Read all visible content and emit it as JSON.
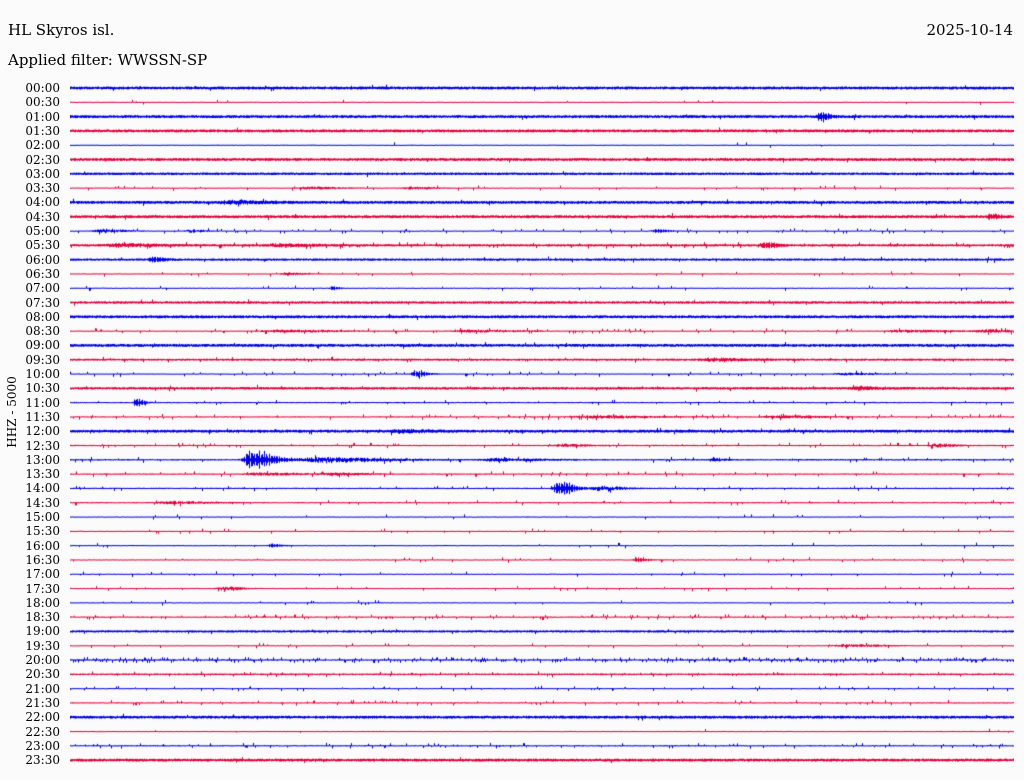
{
  "header": {
    "station": "HL Skyros isl.",
    "filter": "Applied filter: WWSSN-SP",
    "date": "2025-10-14"
  },
  "axis": {
    "channel_label": "HHZ - 5000"
  },
  "colors": {
    "trace_blue": "#0000E6",
    "trace_red": "#E4003C",
    "background": "#FBFBFB",
    "text": "#000000"
  },
  "chart_data": {
    "type": "line",
    "subtype": "helicorder-daily-24h",
    "title": "HL Skyros isl.",
    "date": "2025-10-14",
    "filter": "WWSSN-SP",
    "ylabel": "HHZ - 5000",
    "xlabel": "",
    "grid": "off",
    "legend": "off",
    "row_duration_minutes": 30,
    "rows_count": 48,
    "note": "48 alternating blue/red half-hour traces; amp = baseline noise half-thickness in px; events pos = fraction of the 30-min row; amp in px",
    "rows": [
      {
        "t": "00:00",
        "c": "blue",
        "amp": 1.5,
        "spiky": 0.02,
        "events": []
      },
      {
        "t": "00:30",
        "c": "red",
        "amp": 0.6,
        "spiky": 0.02,
        "events": []
      },
      {
        "t": "01:00",
        "c": "blue",
        "amp": 1.5,
        "spiky": 0.02,
        "events": [
          {
            "pos": 0.794,
            "amp": 4,
            "w": 6,
            "type": "quake"
          }
        ]
      },
      {
        "t": "01:30",
        "c": "red",
        "amp": 1.5,
        "spiky": 0.01,
        "events": []
      },
      {
        "t": "02:00",
        "c": "blue",
        "amp": 0.6,
        "spiky": 0.01,
        "events": []
      },
      {
        "t": "02:30",
        "c": "red",
        "amp": 1.5,
        "spiky": 0.01,
        "events": []
      },
      {
        "t": "03:00",
        "c": "blue",
        "amp": 1.3,
        "spiky": 0.01,
        "events": []
      },
      {
        "t": "03:30",
        "c": "red",
        "amp": 0.6,
        "spiky": 0.06,
        "events": [
          {
            "pos": 0.25,
            "amp": 1.2,
            "w": 20,
            "type": "noise"
          },
          {
            "pos": 0.36,
            "amp": 1.2,
            "w": 15,
            "type": "noise"
          }
        ]
      },
      {
        "t": "04:00",
        "c": "blue",
        "amp": 1.5,
        "spiky": 0.03,
        "events": [
          {
            "pos": 0.17,
            "amp": 1.3,
            "w": 25,
            "type": "noise"
          }
        ]
      },
      {
        "t": "04:30",
        "c": "red",
        "amp": 1.5,
        "spiky": 0.02,
        "events": [
          {
            "pos": 0.974,
            "amp": 2.5,
            "w": 6,
            "type": "quake"
          }
        ]
      },
      {
        "t": "05:00",
        "c": "blue",
        "amp": 0.5,
        "spiky": 0.1,
        "events": [
          {
            "pos": 0.032,
            "amp": 1.5,
            "w": 18,
            "type": "noise"
          },
          {
            "pos": 0.127,
            "amp": 1.5,
            "w": 10,
            "type": "noise"
          },
          {
            "pos": 0.62,
            "amp": 2,
            "w": 8,
            "type": "quake"
          }
        ]
      },
      {
        "t": "05:30",
        "c": "red",
        "amp": 1.2,
        "spiky": 0.08,
        "events": [
          {
            "pos": 0.05,
            "amp": 1.3,
            "w": 30,
            "type": "noise"
          },
          {
            "pos": 0.22,
            "amp": 1.3,
            "w": 25,
            "type": "noise"
          },
          {
            "pos": 0.736,
            "amp": 3,
            "w": 8,
            "type": "quake"
          }
        ]
      },
      {
        "t": "06:00",
        "c": "blue",
        "amp": 1.2,
        "spiky": 0.02,
        "events": [
          {
            "pos": 0.087,
            "amp": 2.5,
            "w": 8,
            "type": "quake"
          }
        ]
      },
      {
        "t": "06:30",
        "c": "red",
        "amp": 0.6,
        "spiky": 0.03,
        "events": [
          {
            "pos": 0.228,
            "amp": 1.4,
            "w": 10,
            "type": "noise"
          }
        ]
      },
      {
        "t": "07:00",
        "c": "blue",
        "amp": 0.6,
        "spiky": 0.03,
        "events": [
          {
            "pos": 0.277,
            "amp": 2,
            "w": 4,
            "type": "quake"
          }
        ]
      },
      {
        "t": "07:30",
        "c": "red",
        "amp": 1.3,
        "spiky": 0.02,
        "events": []
      },
      {
        "t": "08:00",
        "c": "blue",
        "amp": 1.5,
        "spiky": 0.01,
        "events": []
      },
      {
        "t": "08:30",
        "c": "red",
        "amp": 0.6,
        "spiky": 0.1,
        "events": [
          {
            "pos": 0.22,
            "amp": 1.2,
            "w": 40,
            "type": "noise"
          },
          {
            "pos": 0.42,
            "amp": 1.2,
            "w": 35,
            "type": "noise"
          },
          {
            "pos": 0.88,
            "amp": 1.2,
            "w": 30,
            "type": "noise"
          },
          {
            "pos": 0.97,
            "amp": 1.4,
            "w": 25,
            "type": "noise"
          }
        ]
      },
      {
        "t": "09:00",
        "c": "blue",
        "amp": 1.5,
        "spiky": 0.02,
        "events": []
      },
      {
        "t": "09:30",
        "c": "red",
        "amp": 1.1,
        "spiky": 0.04,
        "events": [
          {
            "pos": 0.68,
            "amp": 1.2,
            "w": 25,
            "type": "noise"
          }
        ]
      },
      {
        "t": "10:00",
        "c": "blue",
        "amp": 0.6,
        "spiky": 0.08,
        "events": [
          {
            "pos": 0.365,
            "amp": 3,
            "w": 8,
            "type": "quake"
          },
          {
            "pos": 0.82,
            "amp": 1,
            "w": 20,
            "type": "noise"
          }
        ]
      },
      {
        "t": "10:30",
        "c": "red",
        "amp": 1.3,
        "spiky": 0.03,
        "events": [
          {
            "pos": 0.83,
            "amp": 1.4,
            "w": 15,
            "type": "noise"
          }
        ]
      },
      {
        "t": "11:00",
        "c": "blue",
        "amp": 0.7,
        "spiky": 0.06,
        "events": [
          {
            "pos": 0.069,
            "amp": 4,
            "w": 5,
            "type": "quake"
          }
        ]
      },
      {
        "t": "11:30",
        "c": "red",
        "amp": 0.7,
        "spiky": 0.08,
        "events": [
          {
            "pos": 0.55,
            "amp": 1.2,
            "w": 40,
            "type": "noise"
          },
          {
            "pos": 0.75,
            "amp": 1.2,
            "w": 30,
            "type": "noise"
          }
        ]
      },
      {
        "t": "12:00",
        "c": "blue",
        "amp": 1.5,
        "spiky": 0.03,
        "events": [
          {
            "pos": 0.35,
            "amp": 1.2,
            "w": 20,
            "type": "noise"
          }
        ]
      },
      {
        "t": "12:30",
        "c": "red",
        "amp": 0.7,
        "spiky": 0.08,
        "events": [
          {
            "pos": 0.52,
            "amp": 1.4,
            "w": 15,
            "type": "noise"
          },
          {
            "pos": 0.915,
            "amp": 1.8,
            "w": 12,
            "type": "noise"
          }
        ]
      },
      {
        "t": "13:00",
        "c": "blue",
        "amp": 0.8,
        "spiky": 0.06,
        "events": [
          {
            "pos": 0.191,
            "amp": 10,
            "w": 14,
            "type": "quake"
          },
          {
            "pos": 0.26,
            "amp": 2.2,
            "w": 45,
            "type": "noise"
          },
          {
            "pos": 0.45,
            "amp": 1.4,
            "w": 30,
            "type": "noise"
          },
          {
            "pos": 0.68,
            "amp": 1.5,
            "w": 8,
            "type": "noise"
          }
        ]
      },
      {
        "t": "13:30",
        "c": "red",
        "amp": 0.7,
        "spiky": 0.06,
        "events": [
          {
            "pos": 0.2,
            "amp": 1.2,
            "w": 30,
            "type": "noise"
          },
          {
            "pos": 0.28,
            "amp": 1.2,
            "w": 20,
            "type": "noise"
          }
        ]
      },
      {
        "t": "14:00",
        "c": "blue",
        "amp": 0.7,
        "spiky": 0.04,
        "events": [
          {
            "pos": 0.517,
            "amp": 8,
            "w": 10,
            "type": "quake"
          },
          {
            "pos": 0.56,
            "amp": 2.5,
            "w": 15,
            "type": "noise"
          }
        ]
      },
      {
        "t": "14:30",
        "c": "red",
        "amp": 0.7,
        "spiky": 0.05,
        "events": [
          {
            "pos": 0.105,
            "amp": 1.4,
            "w": 25,
            "type": "noise"
          }
        ]
      },
      {
        "t": "15:00",
        "c": "blue",
        "amp": 0.6,
        "spiky": 0.03,
        "events": []
      },
      {
        "t": "15:30",
        "c": "red",
        "amp": 0.6,
        "spiky": 0.03,
        "events": []
      },
      {
        "t": "16:00",
        "c": "blue",
        "amp": 0.6,
        "spiky": 0.03,
        "events": [
          {
            "pos": 0.213,
            "amp": 2,
            "w": 6,
            "type": "quake"
          }
        ]
      },
      {
        "t": "16:30",
        "c": "red",
        "amp": 0.6,
        "spiky": 0.04,
        "events": [
          {
            "pos": 0.6,
            "amp": 2,
            "w": 7,
            "type": "quake"
          }
        ]
      },
      {
        "t": "17:00",
        "c": "blue",
        "amp": 0.6,
        "spiky": 0.03,
        "events": []
      },
      {
        "t": "17:30",
        "c": "red",
        "amp": 0.6,
        "spiky": 0.04,
        "events": [
          {
            "pos": 0.161,
            "amp": 1.8,
            "w": 12,
            "type": "noise"
          }
        ]
      },
      {
        "t": "18:00",
        "c": "blue",
        "amp": 0.6,
        "spiky": 0.03,
        "events": []
      },
      {
        "t": "18:30",
        "c": "red",
        "amp": 0.7,
        "spiky": 0.15,
        "events": []
      },
      {
        "t": "19:00",
        "c": "blue",
        "amp": 1.2,
        "spiky": 0.02,
        "events": []
      },
      {
        "t": "19:30",
        "c": "red",
        "amp": 0.55,
        "spiky": 0.04,
        "events": [
          {
            "pos": 0.82,
            "amp": 1.2,
            "w": 25,
            "type": "noise"
          }
        ]
      },
      {
        "t": "20:00",
        "c": "blue",
        "amp": 0.8,
        "spiky": 0.3,
        "events": []
      },
      {
        "t": "20:30",
        "c": "red",
        "amp": 0.9,
        "spiky": 0.05,
        "events": []
      },
      {
        "t": "21:00",
        "c": "blue",
        "amp": 0.6,
        "spiky": 0.08,
        "events": []
      },
      {
        "t": "21:30",
        "c": "red",
        "amp": 0.7,
        "spiky": 0.08,
        "events": []
      },
      {
        "t": "22:00",
        "c": "blue",
        "amp": 1.5,
        "spiky": 0.01,
        "events": []
      },
      {
        "t": "22:30",
        "c": "red",
        "amp": 0.6,
        "spiky": 0.01,
        "events": []
      },
      {
        "t": "23:00",
        "c": "blue",
        "amp": 0.7,
        "spiky": 0.1,
        "events": []
      },
      {
        "t": "23:30",
        "c": "red",
        "amp": 1.5,
        "spiky": 0.01,
        "events": []
      }
    ]
  }
}
